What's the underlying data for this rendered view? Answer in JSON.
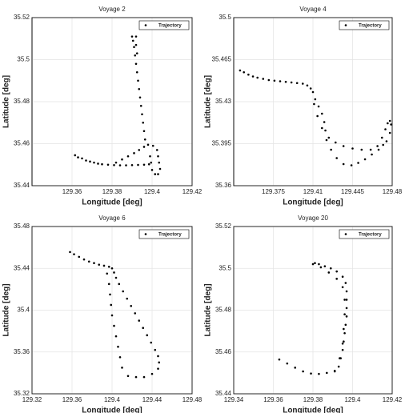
{
  "chart_data": [
    {
      "type": "scatter",
      "title": "Voyage 2",
      "xlabel": "Longitude [deg]",
      "ylabel": "Latitude [deg]",
      "xlim": [
        129.34,
        129.42
      ],
      "ylim": [
        35.44,
        35.52
      ],
      "xticks": [
        129.36,
        129.38,
        129.4,
        129.42
      ],
      "yticks": [
        35.44,
        35.46,
        35.48,
        35.5,
        35.52
      ],
      "grid": true,
      "legend": "upper right",
      "series": [
        {
          "name": "Trajectory",
          "color": "#000000",
          "x": [
            129.3615,
            129.363,
            129.365,
            129.367,
            129.369,
            129.371,
            129.373,
            129.375,
            129.378,
            129.381,
            129.384,
            129.387,
            129.39,
            129.393,
            129.396,
            129.3985,
            129.382,
            129.385,
            129.388,
            129.391,
            129.3935,
            129.396,
            129.398,
            129.4005,
            129.4025,
            129.403,
            129.4035,
            129.404,
            129.403,
            129.4015,
            129.4,
            129.3995,
            129.399,
            129.3965,
            129.396,
            129.3955,
            129.395,
            129.3945,
            129.394,
            129.3935,
            129.393,
            129.3925,
            129.392,
            129.3915,
            129.391,
            129.3905,
            129.39,
            129.392,
            129.392,
            129.3925
          ],
          "values": [
            35.4545,
            35.4535,
            35.453,
            35.452,
            35.4515,
            35.451,
            35.4505,
            35.4502,
            35.45,
            35.4498,
            35.4497,
            35.4497,
            35.4498,
            35.4499,
            35.45,
            35.4502,
            35.451,
            35.4525,
            35.454,
            35.4555,
            35.457,
            35.4585,
            35.4595,
            35.459,
            35.457,
            35.454,
            35.451,
            35.448,
            35.4455,
            35.4455,
            35.4475,
            35.451,
            35.454,
            35.462,
            35.466,
            35.47,
            35.474,
            35.478,
            35.482,
            35.486,
            35.49,
            35.494,
            35.498,
            35.502,
            35.506,
            35.509,
            35.511,
            35.511,
            35.507,
            35.503
          ]
        }
      ]
    },
    {
      "type": "scatter",
      "title": "Voyage 4",
      "xlabel": "Longitude [deg]",
      "ylabel": "Latitude [deg]",
      "xlim": [
        129.34,
        129.48
      ],
      "ylim": [
        35.36,
        35.5
      ],
      "xticks": [
        129.375,
        129.41,
        129.445,
        129.48
      ],
      "yticks": [
        35.36,
        35.395,
        35.43,
        35.465,
        35.5
      ],
      "grid": true,
      "legend": "upper right",
      "series": [
        {
          "name": "Trajectory",
          "color": "#000000",
          "x": [
            129.3456,
            129.349,
            129.353,
            129.357,
            129.361,
            129.366,
            129.371,
            129.376,
            129.381,
            129.386,
            129.391,
            129.396,
            129.401,
            129.405,
            129.408,
            129.41,
            129.412,
            129.415,
            129.418,
            129.42,
            129.421,
            129.424,
            129.43,
            129.437,
            129.445,
            129.453,
            129.461,
            129.467,
            129.471,
            129.474,
            129.476,
            129.478,
            129.479,
            129.478,
            129.475,
            129.411,
            129.414,
            129.418,
            129.422,
            129.426,
            129.431,
            129.437,
            129.444,
            129.45,
            129.456,
            129.462,
            129.468,
            129.472
          ],
          "values": [
            35.456,
            35.4545,
            35.4525,
            35.451,
            35.45,
            35.449,
            35.448,
            35.4475,
            35.447,
            35.4465,
            35.446,
            35.4455,
            35.445,
            35.4435,
            35.441,
            35.438,
            35.432,
            35.426,
            35.42,
            35.413,
            35.406,
            35.4,
            35.396,
            35.393,
            35.391,
            35.39,
            35.39,
            35.393,
            35.4,
            35.407,
            35.412,
            35.414,
            35.411,
            35.404,
            35.397,
            35.428,
            35.418,
            35.408,
            35.398,
            35.39,
            35.383,
            35.378,
            35.377,
            35.379,
            35.382,
            35.386,
            35.39,
            35.394
          ]
        }
      ]
    },
    {
      "type": "scatter",
      "title": "Voyage 6",
      "xlabel": "Longitude [deg]",
      "ylabel": "Latitude [deg]",
      "xlim": [
        129.32,
        129.48
      ],
      "ylim": [
        35.32,
        35.48
      ],
      "xticks": [
        129.32,
        129.36,
        129.4,
        129.44,
        129.48
      ],
      "yticks": [
        35.32,
        35.36,
        35.4,
        35.44,
        35.48
      ],
      "grid": true,
      "legend": "upper right",
      "series": [
        {
          "name": "Trajectory",
          "color": "#000000",
          "x": [
            129.358,
            129.362,
            129.367,
            129.372,
            129.377,
            129.382,
            129.387,
            129.392,
            129.397,
            129.4,
            129.402,
            129.404,
            129.407,
            129.411,
            129.415,
            129.419,
            129.423,
            129.427,
            129.431,
            129.435,
            129.439,
            129.443,
            129.446,
            129.447,
            129.446,
            129.44,
            129.432,
            129.424,
            129.416,
            129.41,
            129.408,
            129.406,
            129.404,
            129.402,
            129.4,
            129.399,
            129.398,
            129.397,
            129.395
          ],
          "values": [
            35.4556,
            35.4535,
            35.451,
            35.4485,
            35.4465,
            35.445,
            35.4435,
            35.4425,
            35.4415,
            35.44,
            35.436,
            35.431,
            35.425,
            35.418,
            35.411,
            35.404,
            35.397,
            35.39,
            35.383,
            35.376,
            35.369,
            35.362,
            35.356,
            35.35,
            35.344,
            35.339,
            35.336,
            35.336,
            35.337,
            35.345,
            35.355,
            35.365,
            35.375,
            35.385,
            35.395,
            35.405,
            35.415,
            35.425,
            35.435
          ]
        }
      ]
    },
    {
      "type": "scatter",
      "title": "Voyage 20",
      "xlabel": "Longitude [deg]",
      "ylabel": "Latitude [deg]",
      "xlim": [
        129.34,
        129.42
      ],
      "ylim": [
        35.44,
        35.52
      ],
      "xticks": [
        129.34,
        129.36,
        129.38,
        129.4,
        129.42
      ],
      "yticks": [
        35.44,
        35.46,
        35.48,
        35.5,
        35.52
      ],
      "grid": true,
      "legend": "upper right",
      "series": [
        {
          "name": "Trajectory",
          "color": "#000000",
          "x": [
            129.363,
            129.367,
            129.371,
            129.375,
            129.379,
            129.383,
            129.387,
            129.391,
            129.393,
            129.394,
            129.395,
            129.3955,
            129.396,
            129.3965,
            129.397,
            129.397,
            129.397,
            129.397,
            129.3965,
            129.395,
            129.392,
            129.389,
            129.386,
            129.383,
            129.381,
            129.38,
            129.384,
            129.388,
            129.392,
            129.395,
            129.396,
            129.396,
            129.3955,
            129.395,
            129.3935,
            129.391
          ],
          "values": [
            35.4564,
            35.4545,
            35.4525,
            35.4507,
            35.4497,
            35.4495,
            35.45,
            35.4507,
            35.453,
            35.457,
            35.461,
            35.465,
            35.469,
            35.473,
            35.477,
            35.481,
            35.485,
            35.489,
            35.493,
            35.496,
            35.4985,
            35.5,
            35.501,
            35.502,
            35.5025,
            35.502,
            35.5005,
            35.498,
            35.495,
            35.491,
            35.485,
            35.478,
            35.471,
            35.464,
            35.457,
            35.451
          ]
        }
      ]
    }
  ]
}
